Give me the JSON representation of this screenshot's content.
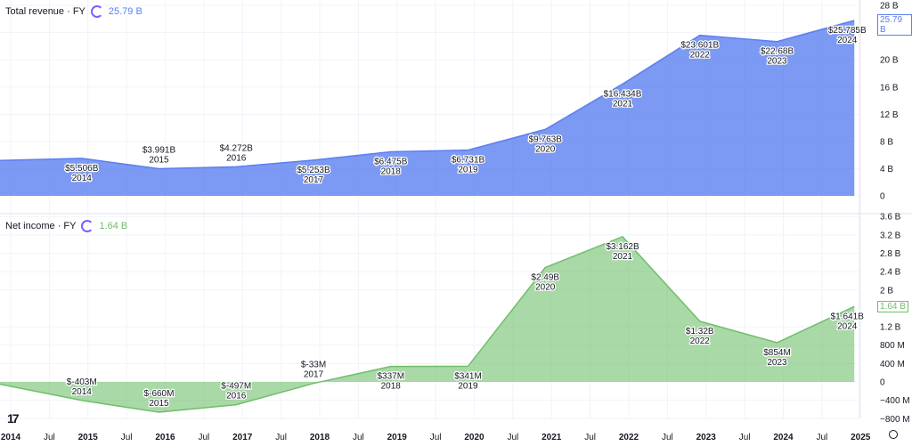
{
  "panes": {
    "revenue": {
      "title": "Total revenue · FY",
      "value": "25.79 B",
      "color": "#5b7ff0"
    },
    "net_income": {
      "title": "Net income · FY",
      "value": "1.64 B",
      "color": "#6fbf6a"
    }
  },
  "chart_data": [
    {
      "type": "area",
      "title": "Total revenue · FY",
      "x": [
        2014,
        2015,
        2016,
        2017,
        2018,
        2019,
        2020,
        2021,
        2022,
        2023,
        2024
      ],
      "values": [
        5.506,
        3.991,
        4.272,
        5.253,
        6.475,
        6.731,
        9.763,
        16.434,
        23.601,
        22.68,
        25.785
      ],
      "labels": [
        "$5.506B",
        "$3.991B",
        "$4.272B",
        "$5.253B",
        "$6.475B",
        "$6.731B",
        "$9.763B",
        "$16.434B",
        "$23.601B",
        "$22.68B",
        "$25.785B"
      ],
      "unit": "B",
      "ylim": [
        0,
        28
      ],
      "yticks": [
        "0",
        "4 B",
        "8 B",
        "12 B",
        "16 B",
        "20 B",
        "24 B",
        "28 B"
      ],
      "ytick_values": [
        0,
        4,
        8,
        12,
        16,
        20,
        24,
        28
      ],
      "last_value_label": "25.79 B"
    },
    {
      "type": "area",
      "title": "Net income · FY",
      "x": [
        2014,
        2015,
        2016,
        2017,
        2018,
        2019,
        2020,
        2021,
        2022,
        2023,
        2024
      ],
      "values": [
        -0.403,
        -0.66,
        -0.497,
        -0.033,
        0.337,
        0.341,
        2.49,
        3.162,
        1.32,
        0.854,
        1.641
      ],
      "labels": [
        "$-403M",
        "$-660M",
        "$-497M",
        "$-33M",
        "$337M",
        "$341M",
        "$2.49B",
        "$3.162B",
        "$1.32B",
        "$854M",
        "$1.641B"
      ],
      "unit": "B",
      "ylim": [
        -0.8,
        3.6
      ],
      "yticks": [
        "−800 M",
        "−400 M",
        "0",
        "400 M",
        "800 M",
        "1.2 B",
        "2 B",
        "2.4 B",
        "2.8 B",
        "3.2 B",
        "3.6 B"
      ],
      "ytick_values": [
        -0.8,
        -0.4,
        0,
        0.4,
        0.8,
        1.2,
        2,
        2.4,
        2.8,
        3.2,
        3.6
      ],
      "last_value_label": "1.64 B"
    }
  ],
  "x_axis": {
    "ticks": [
      "2014",
      "Jul",
      "2015",
      "Jul",
      "2016",
      "Jul",
      "2017",
      "Jul",
      "2018",
      "Jul",
      "2019",
      "Jul",
      "2020",
      "Jul",
      "2021",
      "Jul",
      "2022",
      "Jul",
      "2023",
      "Jul",
      "2024",
      "Jul",
      "2025"
    ]
  },
  "logo": "TV"
}
